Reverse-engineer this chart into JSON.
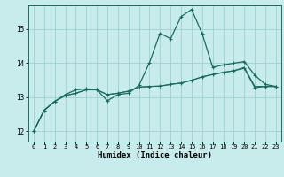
{
  "xlabel": "Humidex (Indice chaleur)",
  "bg_color": "#c8ecec",
  "grid_color": "#a0d0d0",
  "line_color": "#1a6b5e",
  "xlim": [
    -0.5,
    23.5
  ],
  "ylim": [
    11.7,
    15.7
  ],
  "yticks": [
    12,
    13,
    14,
    15
  ],
  "xticks": [
    0,
    1,
    2,
    3,
    4,
    5,
    6,
    7,
    8,
    9,
    10,
    11,
    12,
    13,
    14,
    15,
    16,
    17,
    18,
    19,
    20,
    21,
    22,
    23
  ],
  "series1_x": [
    0,
    1,
    2,
    3,
    4,
    5,
    6,
    7,
    8,
    9,
    10,
    11,
    12,
    13,
    14,
    15,
    16,
    17,
    18,
    19,
    20,
    21,
    22,
    23
  ],
  "series1_y": [
    12.0,
    12.62,
    12.88,
    13.08,
    13.22,
    13.25,
    13.22,
    12.9,
    13.08,
    13.12,
    13.35,
    14.02,
    14.88,
    14.72,
    15.37,
    15.58,
    14.87,
    13.88,
    13.95,
    14.0,
    14.05,
    13.65,
    13.38,
    13.32
  ],
  "series2_x": [
    0,
    1,
    2,
    3,
    4,
    5,
    6,
    7,
    8,
    9,
    10,
    11,
    12,
    13,
    14,
    15,
    16,
    17,
    18,
    19,
    20,
    21,
    22,
    23
  ],
  "series2_y": [
    12.0,
    12.62,
    12.88,
    13.05,
    13.12,
    13.22,
    13.22,
    13.08,
    13.12,
    13.18,
    13.3,
    13.32,
    13.33,
    13.38,
    13.42,
    13.5,
    13.6,
    13.67,
    13.73,
    13.78,
    13.85,
    13.28,
    13.32,
    13.32
  ],
  "series3_x": [
    0,
    1,
    2,
    3,
    4,
    5,
    6,
    7,
    8,
    9,
    10,
    11,
    12,
    13,
    14,
    15,
    16,
    17,
    18,
    19,
    20,
    21,
    22,
    23
  ],
  "series3_y": [
    12.0,
    12.62,
    12.88,
    13.05,
    13.12,
    13.22,
    13.22,
    13.08,
    13.12,
    13.18,
    13.3,
    13.32,
    13.33,
    13.38,
    13.42,
    13.5,
    13.6,
    13.67,
    13.73,
    13.78,
    13.88,
    13.32,
    13.32,
    13.32
  ]
}
